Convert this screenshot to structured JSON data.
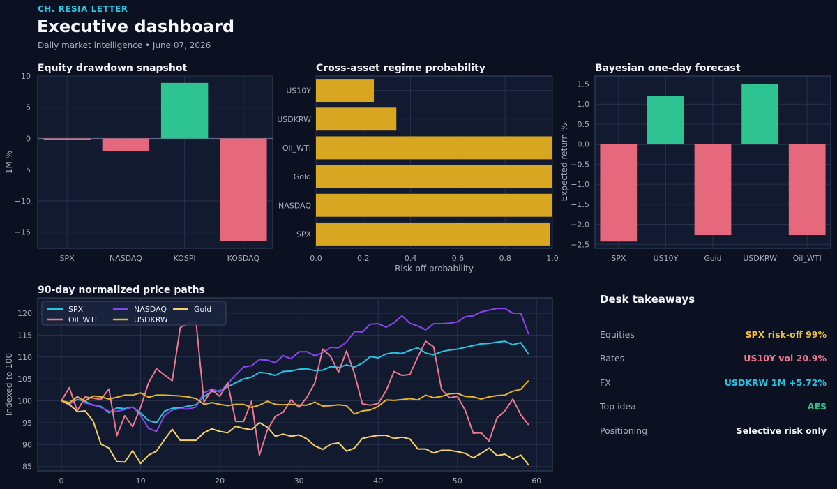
{
  "header": {
    "brand": "CH. RESIA LETTER",
    "title": "Executive dashboard",
    "subtitle": "Daily market intelligence • June 07, 2026"
  },
  "colors": {
    "background": "#0b1120",
    "panel": "#111a2e",
    "positive": "#2ec492",
    "negative": "#e5687d",
    "amber": "#d9a621",
    "cyan": "#22c7e6"
  },
  "chart_data": [
    {
      "id": "drawdown",
      "type": "bar",
      "title": "Equity drawdown snapshot",
      "xlabel": "",
      "ylabel": "1M %",
      "categories": [
        "SPX",
        "NASDAQ",
        "KOSPI",
        "KOSDAQ"
      ],
      "values": [
        -0.1,
        -2.0,
        8.9,
        -16.4
      ],
      "ylim": [
        -17.6,
        10
      ],
      "yticks": [
        10,
        5,
        0,
        -5,
        -10,
        -15
      ],
      "grid": true
    },
    {
      "id": "regime",
      "type": "bar",
      "orientation": "horizontal",
      "title": "Cross-asset regime probability",
      "xlabel": "Risk-off probability",
      "ylabel": "",
      "categories": [
        "SPX",
        "NASDAQ",
        "Gold",
        "Oil_WTI",
        "USDKRW",
        "US10Y"
      ],
      "values": [
        0.99,
        1.0,
        1.0,
        1.0,
        0.34,
        0.245
      ],
      "xlim": [
        0,
        1.0
      ],
      "xticks": [
        0.0,
        0.2,
        0.4,
        0.6,
        0.8,
        1.0
      ],
      "grid": true
    },
    {
      "id": "forecast",
      "type": "bar",
      "title": "Bayesian one-day forecast",
      "xlabel": "",
      "ylabel": "Expected return %",
      "categories": [
        "SPX",
        "US10Y",
        "Gold",
        "USDKRW",
        "Oil_WTI"
      ],
      "values": [
        -2.43,
        1.2,
        -2.27,
        1.5,
        -2.27
      ],
      "ylim": [
        -2.6,
        1.7
      ],
      "yticks": [
        1.5,
        1.0,
        0.5,
        0.0,
        -0.5,
        -1.0,
        -1.5,
        -2.0,
        -2.5
      ],
      "grid": true
    },
    {
      "id": "paths",
      "type": "line",
      "title": "90-day normalized price paths",
      "xlabel": "",
      "ylabel": "Indexed to 100",
      "xlim": [
        -3,
        62
      ],
      "ylim": [
        84,
        123.5
      ],
      "xticks": [
        0,
        10,
        20,
        30,
        40,
        50,
        60
      ],
      "yticks": [
        120,
        115,
        110,
        105,
        100,
        95,
        90,
        85
      ],
      "legend": "top-left",
      "grid": true,
      "series": [
        {
          "name": "SPX",
          "color": "#22c7e6",
          "values": [
            100,
            99.3,
            100.3,
            99.9,
            99.0,
            98.7,
            97.3,
            98.4,
            98.2,
            98.6,
            97.2,
            95.5,
            95.0,
            97.6,
            98.3,
            98.4,
            98.8,
            99.1,
            101.0,
            102.1,
            102.3,
            103.2,
            104.1,
            105.0,
            105.4,
            106.5,
            106.3,
            105.8,
            106.7,
            106.8,
            107.2,
            107.3,
            106.9,
            107.0,
            107.8,
            107.6,
            108.2,
            107.7,
            108.6,
            110.1,
            109.8,
            110.7,
            111.0,
            110.8,
            111.5,
            112.1,
            110.9,
            110.5,
            111.2,
            111.6,
            111.8,
            112.2,
            112.6,
            113.0,
            113.1,
            113.4,
            113.6,
            112.8,
            113.3,
            110.6
          ]
        },
        {
          "name": "NASDAQ",
          "color": "#8a45ec",
          "values": [
            100,
            99.0,
            101.0,
            99.5,
            99.1,
            98.5,
            97.6,
            97.6,
            98.0,
            98.6,
            96.7,
            93.7,
            93.0,
            96.6,
            97.9,
            98.2,
            98.1,
            98.6,
            101.8,
            102.7,
            102.0,
            103.9,
            105.9,
            107.7,
            108.0,
            109.4,
            109.3,
            108.7,
            110.3,
            109.6,
            111.2,
            111.2,
            110.3,
            111.0,
            112.2,
            112.1,
            113.4,
            115.8,
            115.7,
            117.5,
            117.6,
            116.8,
            117.8,
            119.4,
            117.7,
            117.1,
            116.2,
            117.6,
            117.6,
            117.7,
            118.0,
            119.2,
            119.4,
            120.3,
            120.7,
            121.1,
            121.1,
            120.0,
            120.0,
            115.2
          ]
        },
        {
          "name": "Gold",
          "color": "#f6d365",
          "values": [
            100,
            99.2,
            97.5,
            97.7,
            95.4,
            90.1,
            89.2,
            86.1,
            86.0,
            88.6,
            85.7,
            87.6,
            88.5,
            91.1,
            93.5,
            91.0,
            91.0,
            91.0,
            92.7,
            93.6,
            93.0,
            92.7,
            94.2,
            93.7,
            93.4,
            95.0,
            94.0,
            91.9,
            92.4,
            91.9,
            92.2,
            91.3,
            89.7,
            88.9,
            90.1,
            90.4,
            88.5,
            89.2,
            91.4,
            91.8,
            92.1,
            92.1,
            91.4,
            91.7,
            91.3,
            89.0,
            89.0,
            88.1,
            88.7,
            88.7,
            88.4,
            88.0,
            87.0,
            88.0,
            89.2,
            87.5,
            87.8,
            86.7,
            87.6,
            85.3
          ]
        },
        {
          "name": "Oil_WTI",
          "color": "#f07890",
          "values": [
            100,
            103.0,
            97.7,
            100.9,
            100.6,
            100.3,
            102.7,
            92.0,
            96.6,
            94.1,
            98.5,
            104.1,
            107.3,
            105.9,
            104.6,
            116.7,
            117.7,
            118.0,
            99.7,
            102.5,
            101.0,
            104.1,
            95.3,
            95.3,
            99.9,
            87.6,
            93.3,
            96.4,
            97.4,
            100.2,
            98.5,
            100.8,
            104.1,
            111.8,
            110.1,
            106.5,
            111.4,
            106.2,
            99.3,
            99.0,
            99.4,
            102.3,
            106.7,
            105.8,
            106.0,
            110.0,
            113.6,
            112.3,
            102.6,
            100.7,
            101.0,
            97.8,
            92.6,
            92.7,
            90.8,
            96.1,
            97.7,
            100.4,
            96.8,
            94.5
          ]
        },
        {
          "name": "USDKRW",
          "color": "#e8b52b",
          "values": [
            100,
            99.6,
            100.9,
            100.0,
            101.1,
            100.9,
            100.4,
            100.8,
            101.3,
            101.3,
            101.8,
            100.8,
            101.3,
            101.3,
            101.2,
            101.1,
            100.9,
            100.5,
            99.2,
            99.6,
            99.2,
            98.9,
            99.2,
            99.2,
            98.5,
            99.0,
            99.9,
            99.2,
            99.1,
            99.2,
            99.0,
            99.0,
            99.7,
            98.8,
            98.9,
            99.1,
            98.9,
            97.0,
            97.7,
            97.9,
            98.7,
            100.2,
            100.1,
            100.3,
            100.5,
            100.2,
            101.3,
            100.7,
            101.0,
            101.6,
            101.7,
            101.0,
            100.9,
            100.4,
            100.9,
            101.2,
            101.3,
            102.2,
            102.6,
            104.6
          ]
        }
      ]
    }
  ],
  "takeaways": {
    "title": "Desk takeaways",
    "rows": [
      {
        "label": "Equities",
        "value": "SPX risk-off 99%",
        "color": "#f4bf3a"
      },
      {
        "label": "Rates",
        "value": "US10Y vol 20.9%",
        "color": "#f07890"
      },
      {
        "label": "FX",
        "value": "USDKRW 1M +5.72%",
        "color": "#22c7e6"
      },
      {
        "label": "Top idea",
        "value": "AES",
        "color": "#2ec492"
      },
      {
        "label": "Positioning",
        "value": "Selective risk only",
        "color": "#f4f6fb"
      }
    ]
  }
}
